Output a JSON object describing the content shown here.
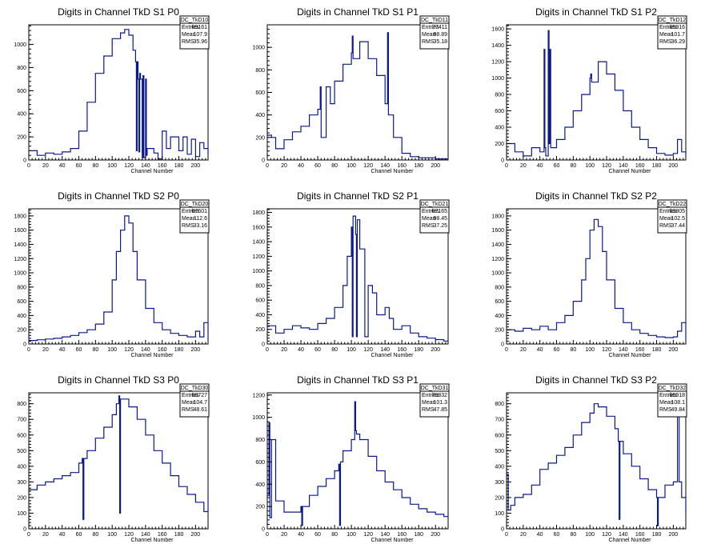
{
  "chart_data": [
    {
      "type": "histogram",
      "title": "Digits in Channel TkD S1 P0",
      "xlabel": "Channel Number",
      "xlim": [
        0,
        215
      ],
      "ylim": [
        0,
        1170
      ],
      "xticks": [
        0,
        20,
        40,
        60,
        80,
        100,
        120,
        140,
        160,
        180,
        200
      ],
      "yticks": [
        0,
        200,
        400,
        600,
        800,
        1000
      ],
      "stats": {
        "name": "DC_TkD10",
        "entries": "69161",
        "mean": "107.9",
        "rms": "35.96"
      },
      "x": [
        0,
        10,
        20,
        30,
        40,
        50,
        60,
        70,
        80,
        90,
        100,
        110,
        115,
        120,
        125,
        128,
        129,
        130,
        131,
        132,
        133,
        134,
        136,
        137,
        138,
        140,
        141,
        142,
        150,
        155,
        160,
        165,
        170,
        180,
        185,
        190,
        195,
        200,
        205,
        210,
        215
      ],
      "y": [
        80,
        40,
        60,
        50,
        70,
        100,
        250,
        500,
        750,
        900,
        1050,
        1100,
        1130,
        1080,
        950,
        850,
        80,
        850,
        700,
        70,
        750,
        700,
        20,
        730,
        20,
        700,
        40,
        100,
        60,
        10,
        250,
        100,
        200,
        80,
        200,
        50,
        180,
        30,
        150,
        100,
        50
      ]
    },
    {
      "type": "histogram",
      "title": "Digits in Channel TkD S1 P1",
      "xlabel": "Channel Number",
      "xlim": [
        0,
        215
      ],
      "ylim": [
        0,
        1200
      ],
      "xticks": [
        0,
        20,
        40,
        60,
        80,
        100,
        120,
        140,
        160,
        180,
        200
      ],
      "yticks": [
        0,
        200,
        400,
        600,
        800,
        1000
      ],
      "stats": {
        "name": "DC_TkD11",
        "entries": "77411",
        "mean": "98.89",
        "rms": "35.18"
      },
      "x": [
        0,
        5,
        10,
        20,
        30,
        40,
        50,
        60,
        63,
        64,
        70,
        75,
        80,
        90,
        100,
        101,
        102,
        110,
        120,
        130,
        140,
        143,
        144,
        150,
        160,
        170,
        180,
        190,
        200,
        210,
        215
      ],
      "y": [
        220,
        200,
        100,
        180,
        250,
        300,
        400,
        450,
        650,
        200,
        650,
        500,
        700,
        850,
        950,
        1100,
        900,
        1050,
        900,
        750,
        500,
        1130,
        400,
        200,
        60,
        30,
        20,
        20,
        10,
        10,
        10
      ]
    },
    {
      "type": "histogram",
      "title": "Digits in Channel TkD S1 P2",
      "xlabel": "Channel Number",
      "xlim": [
        0,
        215
      ],
      "ylim": [
        0,
        1650
      ],
      "xticks": [
        0,
        20,
        40,
        60,
        80,
        100,
        120,
        140,
        160,
        180,
        200
      ],
      "yticks": [
        0,
        200,
        400,
        600,
        800,
        1000,
        1200,
        1400,
        1600
      ],
      "stats": {
        "name": "DC_TkD12",
        "entries": "85916",
        "mean": "101.7",
        "rms": "36.29"
      },
      "x": [
        0,
        10,
        20,
        30,
        40,
        45,
        46,
        47,
        50,
        51,
        52,
        53,
        60,
        70,
        80,
        90,
        100,
        101,
        102,
        110,
        120,
        130,
        140,
        150,
        160,
        170,
        180,
        190,
        200,
        205,
        210,
        215
      ],
      "y": [
        200,
        100,
        50,
        150,
        100,
        1350,
        150,
        50,
        1580,
        200,
        1350,
        150,
        250,
        400,
        600,
        800,
        1000,
        1050,
        950,
        1200,
        1050,
        850,
        600,
        400,
        250,
        150,
        80,
        60,
        80,
        250,
        100,
        50
      ]
    },
    {
      "type": "histogram",
      "title": "Digits in Channel TkD S2 P0",
      "xlabel": "Channel Number",
      "xlim": [
        0,
        215
      ],
      "ylim": [
        0,
        1900
      ],
      "xticks": [
        0,
        20,
        40,
        60,
        80,
        100,
        120,
        140,
        160,
        180,
        200
      ],
      "yticks": [
        0,
        200,
        400,
        600,
        800,
        1000,
        1200,
        1400,
        1600,
        1800
      ],
      "stats": {
        "name": "DC_TkD20",
        "entries": "67601",
        "mean": "112.6",
        "rms": "33.16"
      },
      "x": [
        0,
        10,
        20,
        30,
        40,
        50,
        60,
        70,
        80,
        90,
        100,
        105,
        110,
        115,
        120,
        125,
        130,
        140,
        150,
        160,
        170,
        180,
        190,
        200,
        205,
        210,
        215
      ],
      "y": [
        50,
        60,
        70,
        80,
        100,
        120,
        160,
        200,
        280,
        450,
        900,
        1300,
        1600,
        1800,
        1700,
        1300,
        900,
        500,
        300,
        200,
        150,
        120,
        100,
        180,
        100,
        300,
        50
      ]
    },
    {
      "type": "histogram",
      "title": "Digits in Channel TkD S2 P1",
      "xlabel": "Channel Number",
      "xlim": [
        0,
        215
      ],
      "ylim": [
        0,
        1850
      ],
      "xticks": [
        0,
        20,
        40,
        60,
        80,
        100,
        120,
        140,
        160,
        180,
        200
      ],
      "yticks": [
        0,
        200,
        400,
        600,
        800,
        1000,
        1200,
        1400,
        1600,
        1800
      ],
      "stats": {
        "name": "DC_TkD21",
        "entries": "67165",
        "mean": "98.45",
        "rms": "37.25"
      },
      "x": [
        0,
        10,
        20,
        30,
        40,
        50,
        60,
        70,
        80,
        90,
        95,
        100,
        101,
        102,
        105,
        106,
        107,
        110,
        115,
        116,
        120,
        125,
        130,
        140,
        145,
        150,
        160,
        170,
        180,
        190,
        200,
        210,
        215
      ],
      "y": [
        250,
        150,
        200,
        250,
        220,
        200,
        280,
        350,
        500,
        800,
        1200,
        1600,
        100,
        1750,
        1500,
        100,
        1700,
        1300,
        1300,
        100,
        800,
        700,
        400,
        500,
        350,
        200,
        250,
        150,
        100,
        80,
        60,
        40,
        30
      ]
    },
    {
      "type": "histogram",
      "title": "Digits in Channel TkD S2 P2",
      "xlabel": "Channel Number",
      "xlim": [
        0,
        215
      ],
      "ylim": [
        0,
        1900
      ],
      "xticks": [
        0,
        20,
        40,
        60,
        80,
        100,
        120,
        140,
        160,
        180,
        200
      ],
      "yticks": [
        0,
        200,
        400,
        600,
        800,
        1000,
        1200,
        1400,
        1600,
        1800
      ],
      "stats": {
        "name": "DC_TkD22",
        "entries": "83805",
        "mean": "102.5",
        "rms": "37.44"
      },
      "x": [
        0,
        10,
        20,
        30,
        40,
        50,
        60,
        70,
        80,
        90,
        95,
        100,
        105,
        110,
        115,
        120,
        130,
        140,
        150,
        160,
        170,
        180,
        190,
        200,
        205,
        210,
        215
      ],
      "y": [
        200,
        180,
        220,
        200,
        250,
        200,
        300,
        400,
        600,
        900,
        1200,
        1600,
        1750,
        1650,
        1300,
        900,
        500,
        300,
        200,
        150,
        120,
        100,
        90,
        100,
        180,
        300,
        60
      ]
    },
    {
      "type": "histogram",
      "title": "Digits in Channel TkD S3 P0",
      "xlabel": "Channel Number",
      "xlim": [
        0,
        215
      ],
      "ylim": [
        0,
        870
      ],
      "xticks": [
        0,
        20,
        40,
        60,
        80,
        100,
        120,
        140,
        160,
        180,
        200
      ],
      "yticks": [
        0,
        100,
        200,
        300,
        400,
        500,
        600,
        700,
        800
      ],
      "stats": {
        "name": "DC_TkD30",
        "entries": "68727",
        "mean": "104.7",
        "rms": "48.61"
      },
      "x": [
        0,
        10,
        20,
        30,
        40,
        50,
        60,
        64,
        65,
        66,
        70,
        80,
        90,
        100,
        105,
        108,
        109,
        110,
        120,
        130,
        140,
        150,
        160,
        170,
        180,
        190,
        200,
        210,
        215
      ],
      "y": [
        250,
        280,
        300,
        320,
        340,
        360,
        420,
        450,
        60,
        450,
        500,
        580,
        650,
        730,
        800,
        850,
        100,
        830,
        780,
        700,
        600,
        500,
        420,
        340,
        270,
        220,
        170,
        110,
        230
      ]
    },
    {
      "type": "histogram",
      "title": "Digits in Channel TkD S3 P1",
      "xlabel": "Channel Number",
      "xlim": [
        0,
        215
      ],
      "ylim": [
        0,
        1220
      ],
      "xticks": [
        0,
        20,
        40,
        60,
        80,
        100,
        120,
        140,
        160,
        180,
        200
      ],
      "yticks": [
        0,
        200,
        400,
        600,
        800,
        1000,
        1200
      ],
      "stats": {
        "name": "DC_TkD31",
        "entries": "78832",
        "mean": "101.3",
        "rms": "47.85"
      },
      "x": [
        0,
        2,
        3,
        5,
        10,
        20,
        30,
        40,
        41,
        42,
        50,
        60,
        70,
        80,
        85,
        86,
        87,
        90,
        100,
        104,
        105,
        106,
        110,
        120,
        130,
        140,
        150,
        160,
        170,
        180,
        190,
        200,
        210,
        215
      ],
      "y": [
        300,
        950,
        100,
        800,
        250,
        150,
        150,
        200,
        30,
        200,
        300,
        380,
        450,
        520,
        580,
        30,
        600,
        700,
        800,
        1140,
        880,
        850,
        800,
        650,
        520,
        420,
        350,
        280,
        220,
        180,
        150,
        130,
        110,
        100
      ]
    },
    {
      "type": "histogram",
      "title": "Digits in Channel TkD S3 P2",
      "xlabel": "Channel Number",
      "xlim": [
        0,
        215
      ],
      "ylim": [
        0,
        870
      ],
      "xticks": [
        0,
        20,
        40,
        60,
        80,
        100,
        120,
        140,
        160,
        180,
        200
      ],
      "yticks": [
        0,
        100,
        200,
        300,
        400,
        500,
        600,
        700,
        800
      ],
      "stats": {
        "name": "DC_TkD32",
        "entries": "86918",
        "mean": "108.1",
        "rms": "49.84"
      },
      "x": [
        0,
        2,
        5,
        10,
        20,
        30,
        40,
        50,
        60,
        70,
        80,
        90,
        100,
        105,
        110,
        120,
        130,
        134,
        135,
        136,
        140,
        150,
        160,
        170,
        180,
        181,
        182,
        190,
        200,
        205,
        206,
        207,
        210,
        215
      ],
      "y": [
        350,
        120,
        150,
        200,
        220,
        280,
        380,
        420,
        470,
        520,
        600,
        680,
        740,
        800,
        780,
        720,
        640,
        560,
        60,
        560,
        480,
        400,
        320,
        250,
        200,
        20,
        200,
        280,
        300,
        800,
        820,
        300,
        200,
        100
      ]
    }
  ]
}
